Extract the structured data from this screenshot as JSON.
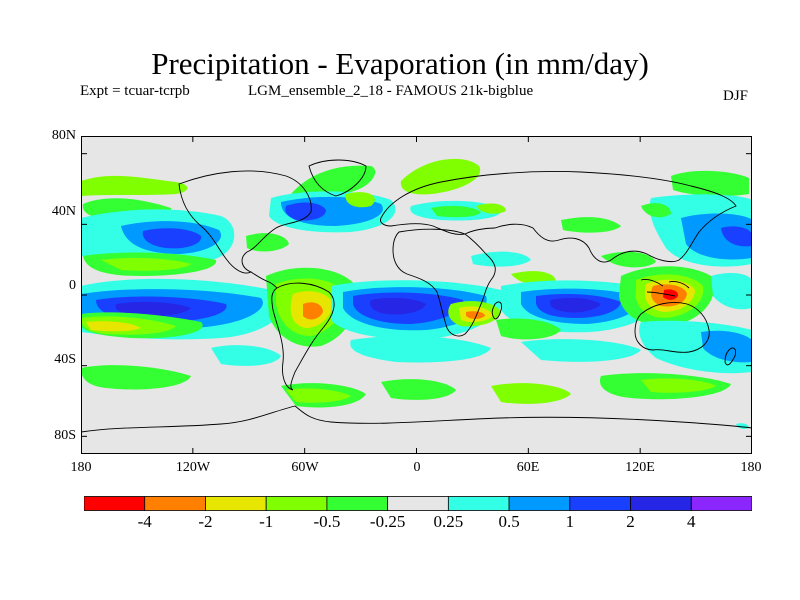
{
  "title": "Precipitation - Evaporation (in mm/day)",
  "subtitle": {
    "expt": "Expt = tcuar-tcrpb",
    "ensemble": "LGM_ensemble_2_18 - FAMOUS 21k-bigblue",
    "season": "DJF"
  },
  "axes": {
    "lat_labels": [
      "80N",
      "40N",
      "0",
      "40S",
      "80S"
    ],
    "lon_labels": [
      "180",
      "120W",
      "60W",
      "0",
      "60E",
      "120E",
      "180"
    ],
    "lat_values": [
      80,
      40,
      0,
      -40,
      -80
    ],
    "lon_values": [
      -180,
      -120,
      -60,
      0,
      60,
      120,
      180
    ],
    "lon_range": [
      -180,
      180
    ],
    "lat_range": [
      -90,
      90
    ]
  },
  "colorbar": {
    "colors": [
      "#ff0000",
      "#ff8000",
      "#e6e600",
      "#80ff00",
      "#33ff33",
      "#e6e6e6",
      "#33ffe6",
      "#0099ff",
      "#1a40ff",
      "#2626e6",
      "#8c26ff"
    ],
    "labels": [
      "-4",
      "-2",
      "-1",
      "-0.5",
      "-0.25",
      "0.25",
      "0.5",
      "1",
      "2",
      "4"
    ]
  },
  "map_background_color": "#e6e6e6"
}
